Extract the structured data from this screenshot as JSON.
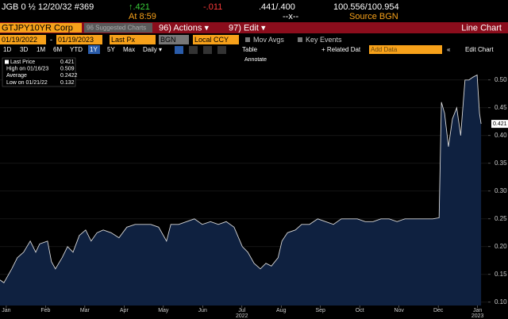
{
  "header": {
    "security": "JGB 0 ½ 12/20/32 #369",
    "change_up": "↑.421",
    "change": "-.011",
    "bid_ask_yield": ".441/.400",
    "price": "100.556/100.954",
    "time": "At 8:59",
    "size": "--x--",
    "source": "Source BGN"
  },
  "toolbar": {
    "ticker": "GTJPY10YR Corp",
    "suggested": "96 Suggested Charts",
    "actions": "96) Actions ▾",
    "edit": "97) Edit ▾",
    "view": "Line Chart"
  },
  "controls": {
    "start": "01/19/2022",
    "sep": "-",
    "end": "01/19/2023",
    "field": "Last Px",
    "source": "BGN",
    "currency": "Local CCY",
    "mov_avgs": "Mov Avgs",
    "key_events": "Key Events"
  },
  "periods": [
    "1D",
    "3D",
    "1M",
    "6M",
    "YTD",
    "1Y",
    "5Y",
    "Max"
  ],
  "active_period": 5,
  "options": {
    "frequency": "Daily ▾",
    "table": "Table",
    "related": "+ Related Dat",
    "add_data": "Add Data",
    "nav": "«",
    "edit_chart": "Edit Chart",
    "annotate": "Annotate"
  },
  "chart_data": {
    "type": "line",
    "color": "#d8d8d8",
    "fill": "#0f2140",
    "stats": [
      {
        "label": "Last Price",
        "value": 0.421
      },
      {
        "label": "High on 01/16/23",
        "value": 0.509
      },
      {
        "label": "Average",
        "value": 0.2422
      },
      {
        "label": "Low on 01/21/22",
        "value": 0.132
      }
    ],
    "x": [
      -0.16,
      -0.06,
      0.14,
      0.28,
      0.44,
      0.61,
      0.75,
      0.85,
      1.05,
      1.15,
      1.25,
      1.42,
      1.56,
      1.7,
      1.86,
      2.02,
      2.16,
      2.31,
      2.47,
      2.67,
      2.87,
      3.07,
      3.28,
      3.48,
      3.68,
      3.88,
      4.08,
      4.19,
      4.39,
      4.59,
      4.79,
      4.99,
      5.2,
      5.4,
      5.6,
      5.8,
      6.01,
      6.15,
      6.31,
      6.47,
      6.61,
      6.75,
      6.92,
      7.02,
      7.16,
      7.36,
      7.52,
      7.72,
      7.93,
      8.13,
      8.33,
      8.53,
      8.74,
      8.94,
      9.14,
      9.34,
      9.54,
      9.75,
      9.95,
      10.15,
      10.35,
      10.56,
      10.86,
      11.02,
      11.08,
      11.16,
      11.26,
      11.36,
      11.47,
      11.57,
      11.68,
      11.78,
      11.88,
      11.99,
      12.05,
      12.09
    ],
    "values": [
      0.14,
      0.135,
      0.16,
      0.18,
      0.19,
      0.21,
      0.19,
      0.205,
      0.21,
      0.173,
      0.16,
      0.18,
      0.2,
      0.19,
      0.22,
      0.23,
      0.21,
      0.225,
      0.23,
      0.225,
      0.216,
      0.235,
      0.24,
      0.24,
      0.24,
      0.235,
      0.21,
      0.24,
      0.24,
      0.245,
      0.25,
      0.24,
      0.245,
      0.24,
      0.245,
      0.235,
      0.2,
      0.19,
      0.17,
      0.16,
      0.17,
      0.165,
      0.18,
      0.21,
      0.225,
      0.23,
      0.24,
      0.24,
      0.25,
      0.245,
      0.24,
      0.25,
      0.25,
      0.25,
      0.245,
      0.245,
      0.25,
      0.25,
      0.245,
      0.25,
      0.25,
      0.25,
      0.25,
      0.252,
      0.46,
      0.44,
      0.38,
      0.43,
      0.45,
      0.4,
      0.5,
      0.5,
      0.505,
      0.509,
      0.44,
      0.421
    ],
    "xlim": [
      -0.16,
      12.27
    ],
    "xticks": [
      {
        "value": 0,
        "label": "Jan"
      },
      {
        "value": 1,
        "label": "Feb"
      },
      {
        "value": 2,
        "label": "Mar"
      },
      {
        "value": 3,
        "label": "Apr"
      },
      {
        "value": 4,
        "label": "May"
      },
      {
        "value": 5,
        "label": "Jun"
      },
      {
        "value": 6,
        "label": "Jul"
      },
      {
        "value": 7,
        "label": "Aug"
      },
      {
        "value": 8,
        "label": "Sep"
      },
      {
        "value": 9,
        "label": "Oct"
      },
      {
        "value": 10,
        "label": "Nov"
      },
      {
        "value": 11,
        "label": "Dec"
      },
      {
        "value": 12,
        "label": "Jan"
      }
    ],
    "year_labels": [
      {
        "value": 6,
        "label": "2022"
      },
      {
        "value": 12,
        "label": "2023"
      }
    ],
    "ylim": [
      0.094,
      0.544
    ],
    "yticks": [
      {
        "value": 0.1,
        "label": "0.10"
      },
      0.15,
      {
        "value": 0.2,
        "label": "0.20"
      },
      0.25,
      {
        "value": 0.3,
        "label": "0.30"
      },
      0.35,
      {
        "value": 0.4,
        "label": "0.40"
      },
      0.45,
      {
        "value": 0.5,
        "label": "0.50"
      }
    ]
  }
}
